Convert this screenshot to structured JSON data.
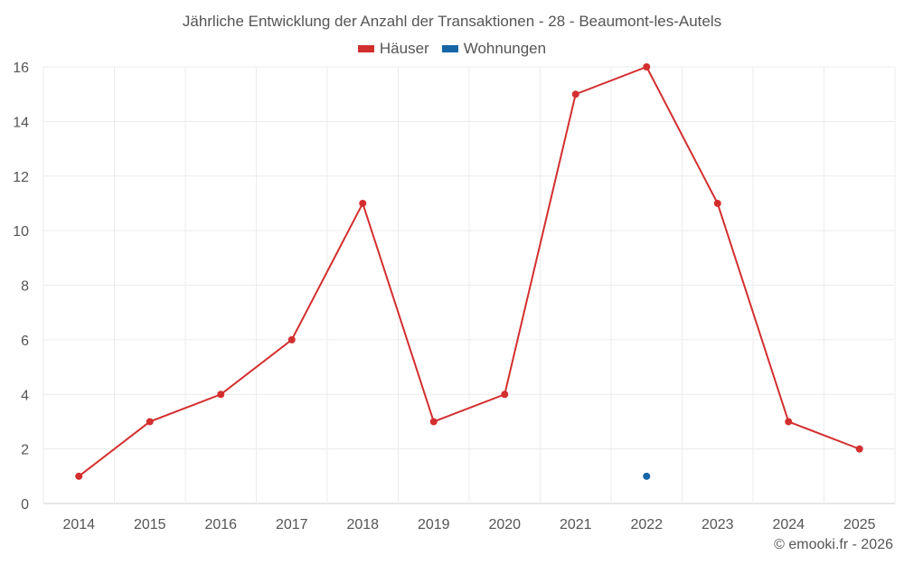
{
  "chart_data": {
    "type": "line",
    "title": "Jährliche Entwicklung der Anzahl der Transaktionen - 28 - Beaumont-les-Autels",
    "categories": [
      "2014",
      "2015",
      "2016",
      "2017",
      "2018",
      "2019",
      "2020",
      "2021",
      "2022",
      "2023",
      "2024",
      "2025"
    ],
    "series": [
      {
        "name": "Häuser",
        "color": "#d32f2f",
        "values": [
          1,
          3,
          4,
          6,
          11,
          3,
          4,
          15,
          16,
          11,
          3,
          2
        ]
      },
      {
        "name": "Wohnungen",
        "color": "#1565a7",
        "values": [
          null,
          null,
          null,
          null,
          null,
          null,
          null,
          null,
          1,
          null,
          null,
          null
        ]
      }
    ],
    "ylim": [
      0,
      16
    ],
    "yticks": [
      0,
      2,
      4,
      6,
      8,
      10,
      12,
      14,
      16
    ],
    "grid": true,
    "legend_position": "top-center",
    "xlabel": "",
    "ylabel": ""
  },
  "footer": {
    "credit": "© emooki.fr - 2026"
  }
}
